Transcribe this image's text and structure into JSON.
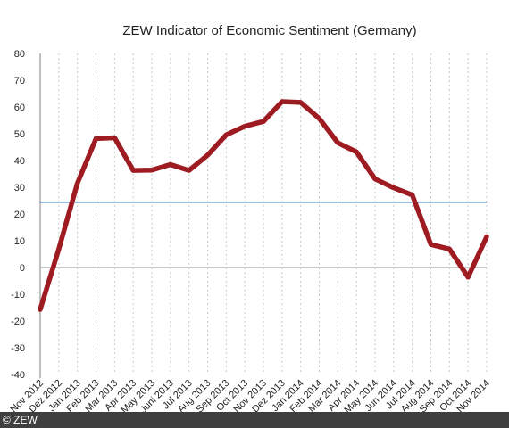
{
  "credit": "© ZEW",
  "colors": {
    "series": "#9e1b22",
    "reference": "#4f7fb0",
    "zero_line": "#a6a6a6",
    "grid": "#c8c8c8",
    "axis": "#7f7f7f"
  },
  "chart_data": {
    "type": "line",
    "title": "ZEW Indicator of Economic Sentiment (Germany)",
    "xlabel": "",
    "ylabel": "",
    "ylim": [
      -40,
      80
    ],
    "yticks": [
      80,
      70,
      60,
      50,
      40,
      30,
      20,
      10,
      0,
      -10,
      -20,
      -30,
      -40
    ],
    "grid": "vertical dotted",
    "categories": [
      "Nov 2012",
      "Dez 2012",
      "Jan 2013",
      "Feb 2013",
      "Mar 2013",
      "Apr 2013",
      "May 2013",
      "Juni 2013",
      "Jul 2013",
      "Aug 2013",
      "Sep 2013",
      "Oct 2013",
      "Nov 2013",
      "Dez 2013",
      "Jan 2014",
      "Feb 2014",
      "Mar 2014",
      "Apr 2014",
      "May 2014",
      "Jun 2014",
      "Jul 2014",
      "Aug 2014",
      "Sep 2014",
      "Oct 2014",
      "Nov 2014"
    ],
    "series": [
      {
        "values": [
          -15.7,
          6.9,
          31.5,
          48.2,
          48.5,
          36.3,
          36.4,
          38.5,
          36.3,
          42.0,
          49.6,
          52.8,
          54.6,
          62.0,
          61.7,
          55.7,
          46.6,
          43.2,
          33.1,
          29.8,
          27.1,
          8.6,
          6.9,
          -3.6,
          11.5
        ]
      },
      {
        "values": [
          24.4,
          24.4,
          24.4,
          24.4,
          24.4,
          24.4,
          24.4,
          24.4,
          24.4,
          24.4,
          24.4,
          24.4,
          24.4,
          24.4,
          24.4,
          24.4,
          24.4,
          24.4,
          24.4,
          24.4,
          24.4,
          24.4,
          24.4,
          24.4,
          24.4
        ]
      }
    ]
  }
}
